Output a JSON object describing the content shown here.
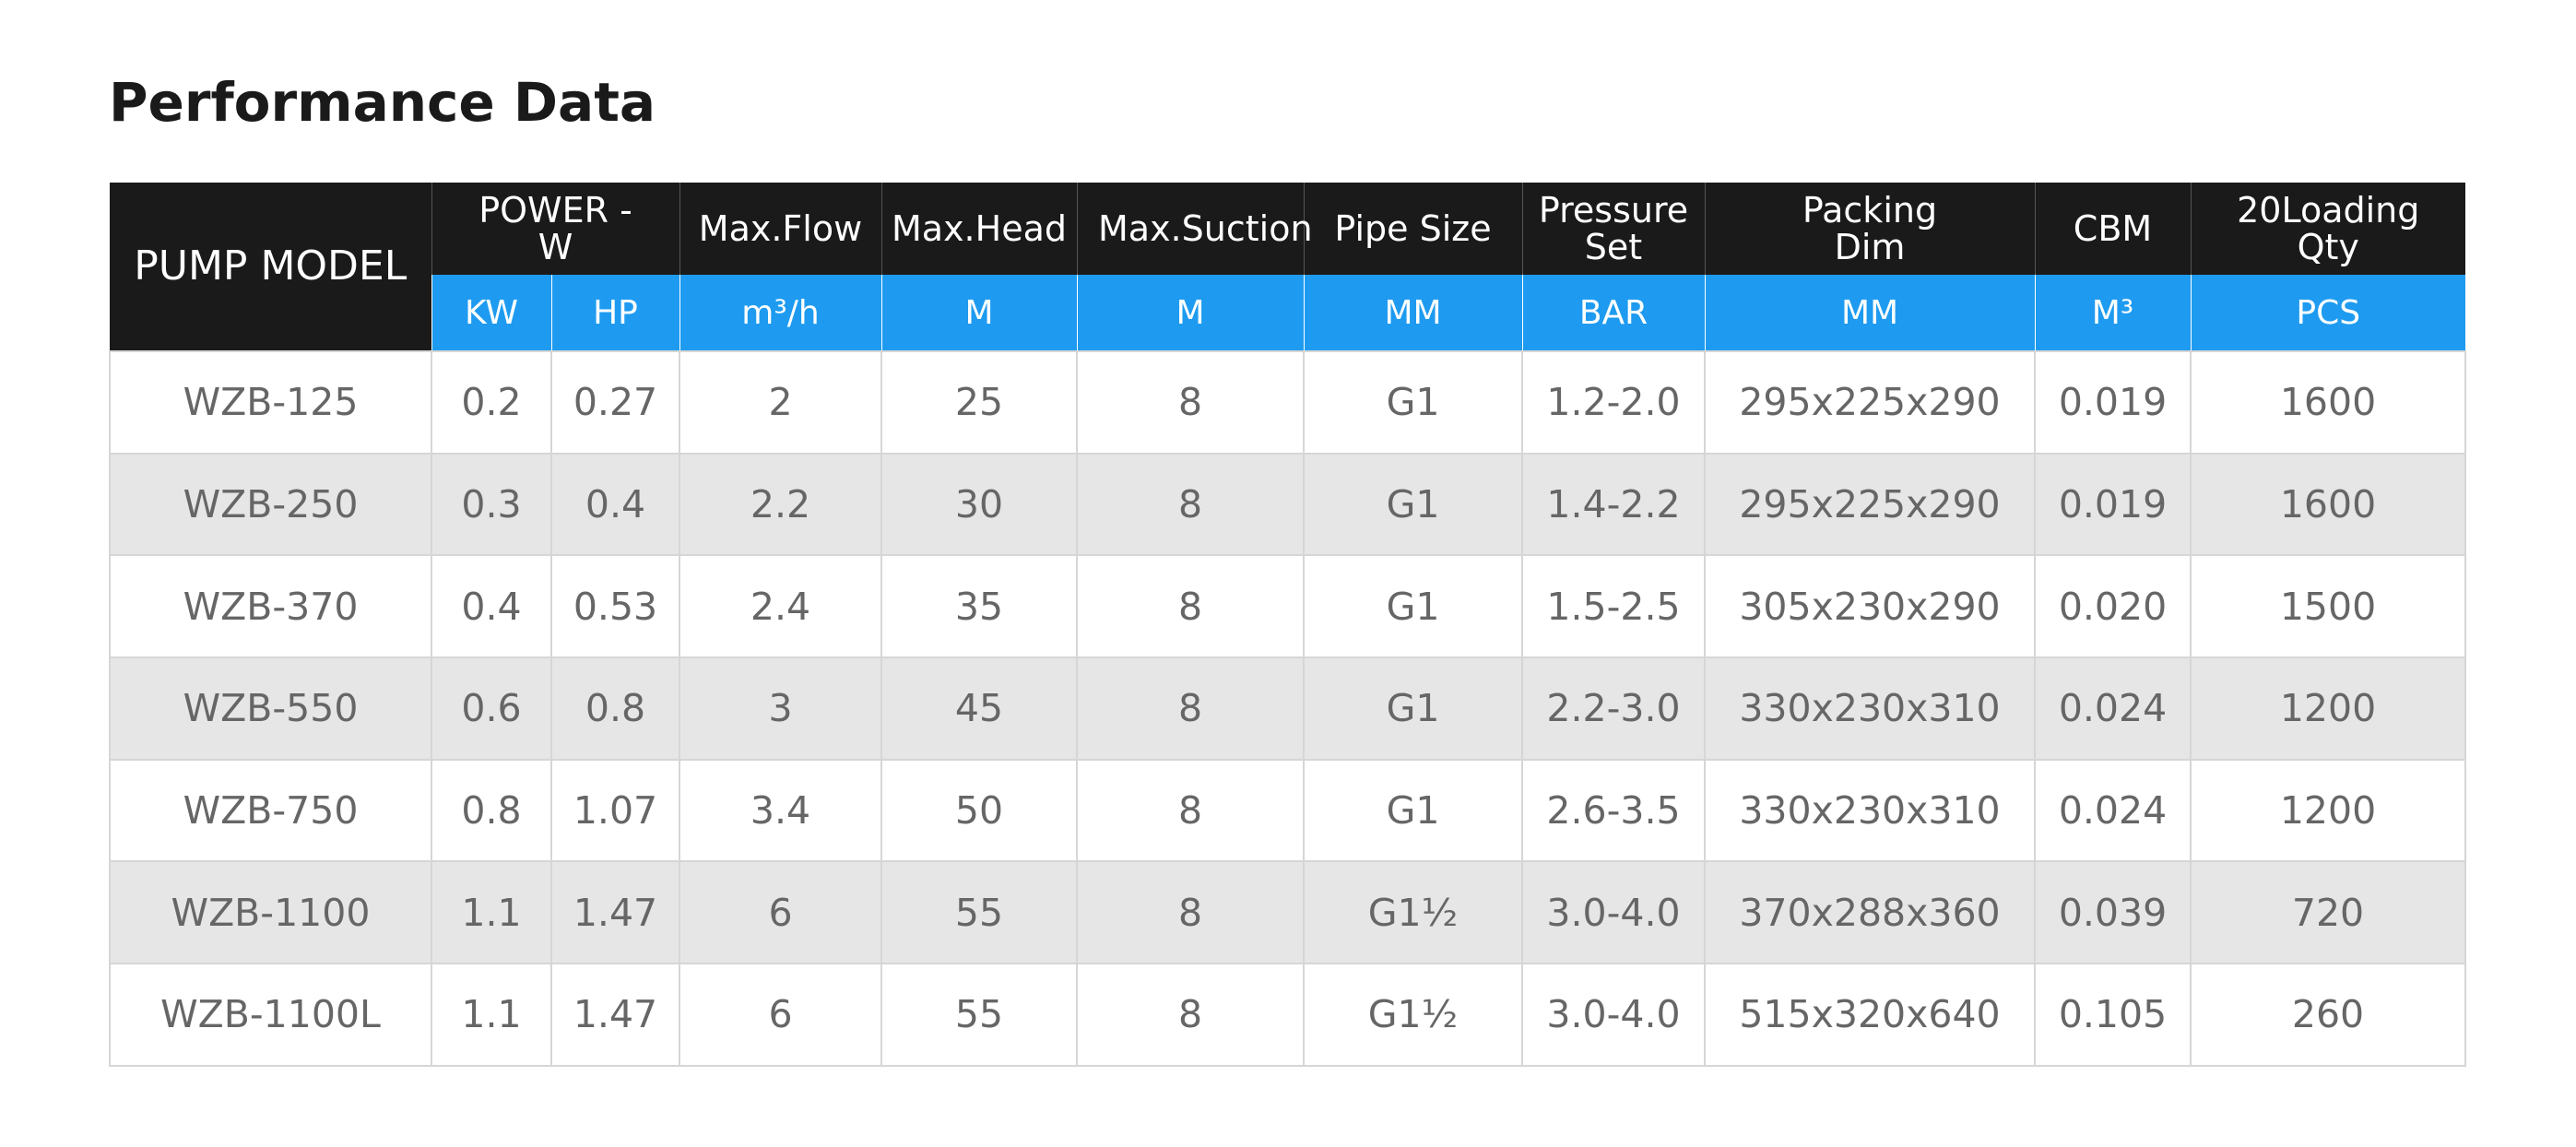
{
  "header": {
    "title": "Performance Data"
  },
  "table": {
    "model_header": "PUMP MODEL",
    "group_headers": [
      "POWER -W",
      "Max.Flow",
      "Max.Head",
      "Max.Suction",
      "Pipe Size",
      "Pressure Set",
      "Packing Dim",
      "CBM",
      "20Loading Qty"
    ],
    "units": [
      "KW",
      "HP",
      "m³/h",
      "M",
      "M",
      "MM",
      "BAR",
      "MM",
      "M³",
      "PCS"
    ],
    "rows": [
      [
        "WZB-125",
        "0.2",
        "0.27",
        "2",
        "25",
        "8",
        "G1",
        "1.2-2.0",
        "295x225x290",
        "0.019",
        "1600"
      ],
      [
        "WZB-250",
        "0.3",
        "0.4",
        "2.2",
        "30",
        "8",
        "G1",
        "1.4-2.2",
        "295x225x290",
        "0.019",
        "1600"
      ],
      [
        "WZB-370",
        "0.4",
        "0.53",
        "2.4",
        "35",
        "8",
        "G1",
        "1.5-2.5",
        "305x230x290",
        "0.020",
        "1500"
      ],
      [
        "WZB-550",
        "0.6",
        "0.8",
        "3",
        "45",
        "8",
        "G1",
        "2.2-3.0",
        "330x230x310",
        "0.024",
        "1200"
      ],
      [
        "WZB-750",
        "0.8",
        "1.07",
        "3.4",
        "50",
        "8",
        "G1",
        "2.6-3.5",
        "330x230x310",
        "0.024",
        "1200"
      ],
      [
        "WZB-1100",
        "1.1",
        "1.47",
        "6",
        "55",
        "8",
        "G1½",
        "3.0-4.0",
        "370x288x360",
        "0.039",
        "720"
      ],
      [
        "WZB-1100L",
        "1.1",
        "1.47",
        "6",
        "55",
        "8",
        "G1½",
        "3.0-4.0",
        "515x320x640",
        "0.105",
        "260"
      ]
    ]
  }
}
